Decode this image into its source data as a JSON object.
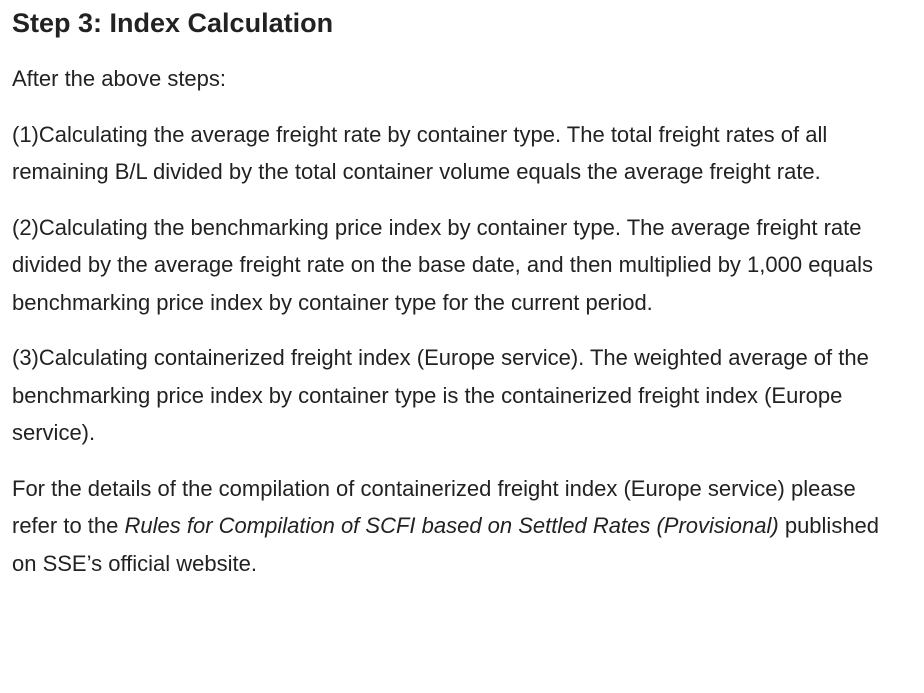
{
  "heading": "Step 3: Index Calculation",
  "intro": "After the above steps:",
  "paragraphs": [
    "(1)Calculating the average freight rate by container type. The total freight rates of all remaining B/L divided by the total container volume equals the average freight rate.",
    "(2)Calculating the benchmarking price index by container type. The average freight rate divided by the average freight rate on the base date, and then multiplied by 1,000 equals benchmarking price index by container type for the current period.",
    "(3)Calculating containerized freight index (Europe service). The weighted average of the benchmarking price index by container type is the containerized freight index (Europe service)."
  ],
  "details": {
    "before": "For the details of the compilation of containerized freight index (Europe service) please refer to the ",
    "title": "Rules for Compilation of SCFI based on Settled Rates (Provisional)",
    "after": " published on SSE’s official website."
  }
}
